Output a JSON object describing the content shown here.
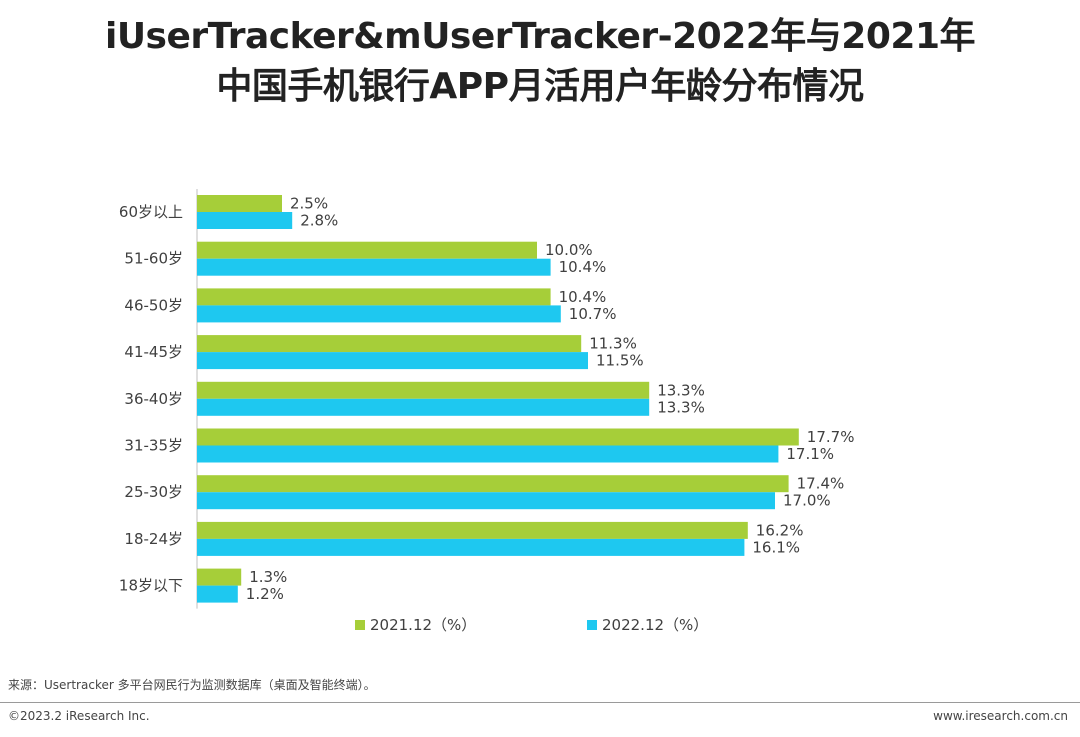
{
  "title": {
    "line1": "iUserTracker&mUserTracker-2022年与2021年",
    "line2": "中国手机银行APP月活用户年龄分布情况"
  },
  "chart_data": {
    "type": "bar",
    "orientation": "horizontal",
    "categories": [
      "60岁以上",
      "51-60岁",
      "46-50岁",
      "41-45岁",
      "36-40岁",
      "31-35岁",
      "25-30岁",
      "18-24岁",
      "18岁以下"
    ],
    "series": [
      {
        "name": "2021.12（%）",
        "color": "#a6ce39",
        "values": [
          2.5,
          10.0,
          10.4,
          11.3,
          13.3,
          17.7,
          17.4,
          16.2,
          1.3
        ]
      },
      {
        "name": "2022.12（%）",
        "color": "#1ec8f0",
        "values": [
          2.8,
          10.4,
          10.7,
          11.5,
          13.3,
          17.1,
          17.0,
          16.1,
          1.2
        ]
      }
    ],
    "value_labels": [
      [
        "2.5%",
        "10.0%",
        "10.4%",
        "11.3%",
        "13.3%",
        "17.7%",
        "17.4%",
        "16.2%",
        "1.3%"
      ],
      [
        "2.8%",
        "10.4%",
        "10.7%",
        "11.5%",
        "13.3%",
        "17.1%",
        "17.0%",
        "16.1%",
        "1.2%"
      ]
    ],
    "xlim": [
      0,
      20
    ],
    "grid": false,
    "legend_position": "bottom"
  },
  "footer": {
    "source": "来源：Usertracker 多平台网民行为监测数据库（桌面及智能终端）。",
    "copyright": "©2023.2 iResearch Inc.",
    "website": "www.iresearch.com.cn"
  }
}
